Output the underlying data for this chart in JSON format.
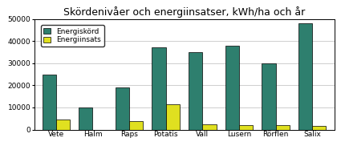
{
  "title": "Skördenivåer och energiinsatser, kWh/ha och år",
  "categories": [
    "Vete",
    "Halm",
    "Raps",
    "Potatis",
    "Vall",
    "Lusern",
    "Rörflen",
    "Salix"
  ],
  "energiskord": [
    25000,
    10000,
    19000,
    37000,
    35000,
    38000,
    30000,
    48000
  ],
  "energiinsats": [
    4500,
    0,
    3800,
    11500,
    2500,
    2000,
    2000,
    1500
  ],
  "bar_color_skord": "#2e7f6e",
  "bar_color_insats": "#e0e020",
  "background_color": "#ffffff",
  "ylim": [
    0,
    50000
  ],
  "yticks": [
    0,
    10000,
    20000,
    30000,
    40000,
    50000
  ],
  "legend_labels": [
    "Energiskörd",
    "Energiinsats"
  ],
  "bar_width": 0.38,
  "title_fontsize": 9
}
